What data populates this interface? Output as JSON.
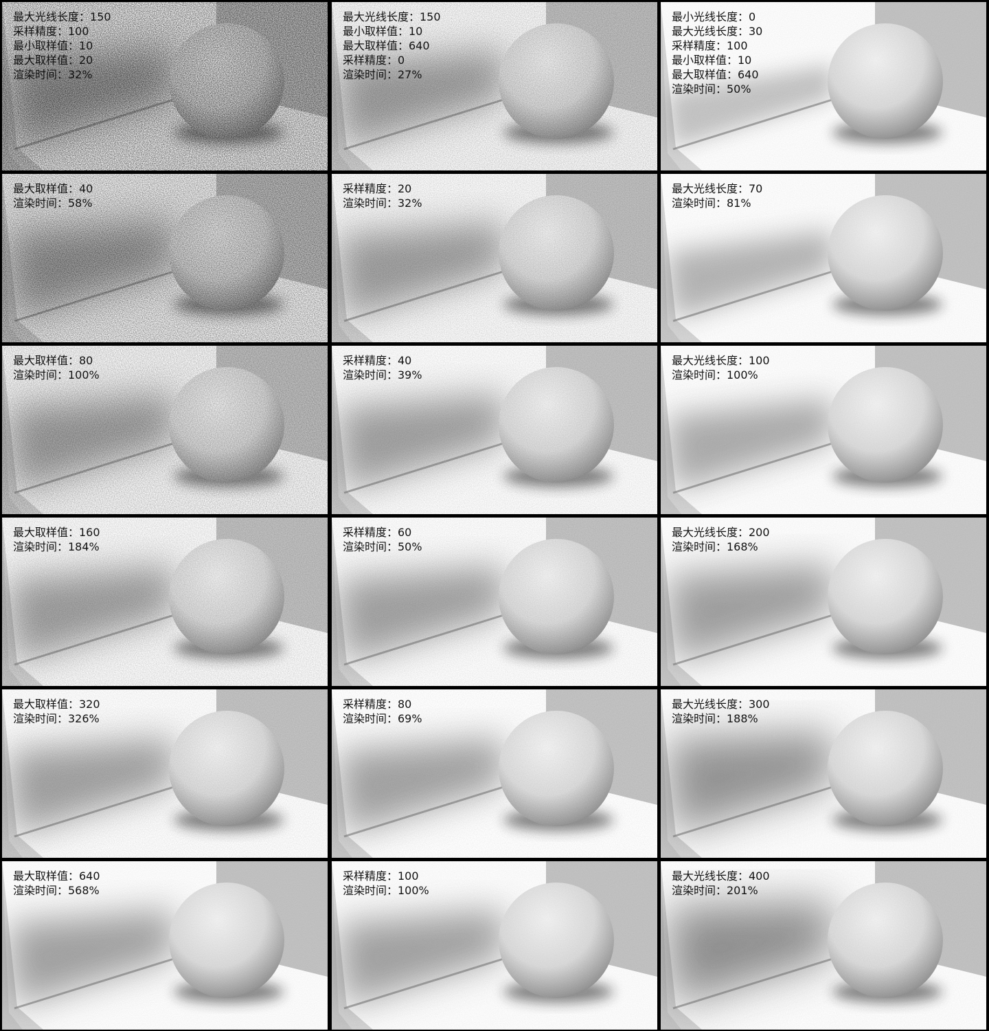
{
  "colors": {
    "background_wall": "#c4c4c4",
    "floor": "#ffffff",
    "divider": "#000000",
    "text": "#111111"
  },
  "columns": [
    {
      "cells": [
        {
          "labels": [
            "最大光线长度：150",
            "采样精度：100",
            "最小取样值：10",
            "最大取样值：20",
            "渲染时间：32%"
          ],
          "noise": 0.55,
          "ao": 0.55
        },
        {
          "labels": [
            "最大取样值：40",
            "渲染时间：58%"
          ],
          "noise": 0.42,
          "ao": 0.55
        },
        {
          "labels": [
            "最大取样值：80",
            "渲染时间：100%"
          ],
          "noise": 0.25,
          "ao": 0.5
        },
        {
          "labels": [
            "最大取样值：160",
            "渲染时间：184%"
          ],
          "noise": 0.15,
          "ao": 0.5
        },
        {
          "labels": [
            "最大取样值：320",
            "渲染时间：326%"
          ],
          "noise": 0.08,
          "ao": 0.5
        },
        {
          "labels": [
            "最大取样值：640",
            "渲染时间：568%"
          ],
          "noise": 0.04,
          "ao": 0.5
        }
      ]
    },
    {
      "cells": [
        {
          "labels": [
            "最大光线长度：150",
            "最小取样值：10",
            "最大取样值：640",
            "采样精度：0",
            "渲染时间：27%"
          ],
          "noise": 0.2,
          "ao": 0.5
        },
        {
          "labels": [
            "采样精度：20",
            "渲染时间：32%"
          ],
          "noise": 0.15,
          "ao": 0.5
        },
        {
          "labels": [
            "采样精度：40",
            "渲染时间：39%"
          ],
          "noise": 0.1,
          "ao": 0.5
        },
        {
          "labels": [
            "采样精度：60",
            "渲染时间：50%"
          ],
          "noise": 0.08,
          "ao": 0.5
        },
        {
          "labels": [
            "采样精度：80",
            "渲染时间：69%"
          ],
          "noise": 0.06,
          "ao": 0.5
        },
        {
          "labels": [
            "采样精度：100",
            "渲染时间：100%"
          ],
          "noise": 0.04,
          "ao": 0.5
        }
      ]
    },
    {
      "cells": [
        {
          "labels": [
            "最小光线长度：0",
            "最大光线长度：30",
            "采样精度：100",
            "最小取样值：10",
            "最大取样值：640",
            "渲染时间：50%"
          ],
          "noise": 0.04,
          "ao": 0.15
        },
        {
          "labels": [
            "最大光线长度：70",
            "渲染时间：81%"
          ],
          "noise": 0.04,
          "ao": 0.3
        },
        {
          "labels": [
            "最大光线长度：100",
            "渲染时间：100%"
          ],
          "noise": 0.04,
          "ao": 0.4
        },
        {
          "labels": [
            "最大光线长度：200",
            "渲染时间：168%"
          ],
          "noise": 0.04,
          "ao": 0.55
        },
        {
          "labels": [
            "最大光线长度：300",
            "渲染时间：188%"
          ],
          "noise": 0.04,
          "ao": 0.65
        },
        {
          "labels": [
            "最大光线长度：400",
            "渲染时间：201%"
          ],
          "noise": 0.04,
          "ao": 0.7
        }
      ]
    }
  ]
}
